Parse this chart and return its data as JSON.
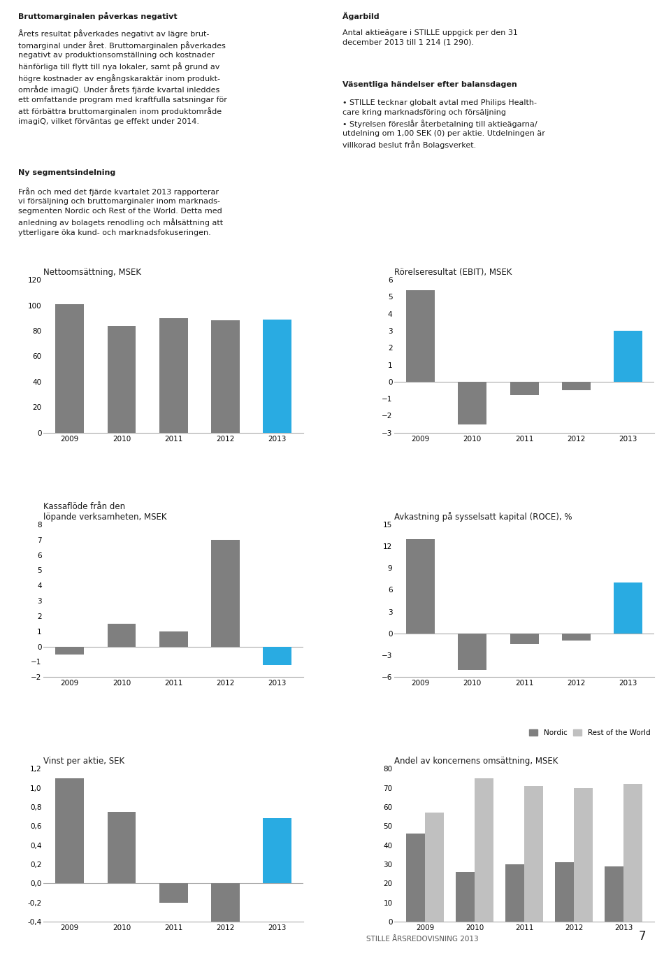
{
  "text_blocks": {
    "footer": "STILLE ÅRSREDOVISNING 2013",
    "page_number": "7"
  },
  "years": [
    "2009",
    "2010",
    "2011",
    "2012",
    "2013"
  ],
  "chart1": {
    "title": "Nettoomsättning, MSEK",
    "values": [
      101,
      84,
      90,
      88,
      89
    ],
    "ylim": [
      0,
      120
    ],
    "yticks": [
      0,
      20,
      40,
      60,
      80,
      100,
      120
    ]
  },
  "chart2": {
    "title": "Rörelseresultat (EBIT), MSEK",
    "values": [
      5.4,
      -2.5,
      -0.8,
      -0.5,
      3.0
    ],
    "ylim": [
      -3,
      6
    ],
    "yticks": [
      -3,
      -2,
      -1,
      0,
      1,
      2,
      3,
      4,
      5,
      6
    ]
  },
  "chart3": {
    "title": "Kassaflöde från den\nlöpande verksamheten, MSEK",
    "values": [
      -0.5,
      1.5,
      1.0,
      7.0,
      -1.2
    ],
    "ylim": [
      -2,
      8
    ],
    "yticks": [
      -2,
      -1,
      0,
      1,
      2,
      3,
      4,
      5,
      6,
      7,
      8
    ]
  },
  "chart4": {
    "title": "Avkastning på sysselsatt kapital (ROCE), %",
    "values": [
      13.0,
      -5.0,
      -1.5,
      -1.0,
      7.0
    ],
    "ylim": [
      -6,
      15
    ],
    "yticks": [
      -6,
      -3,
      0,
      3,
      6,
      9,
      12,
      15
    ]
  },
  "chart5": {
    "title": "Vinst per aktie, SEK",
    "values": [
      1.1,
      0.75,
      -0.2,
      -0.4,
      0.68
    ],
    "ylim": [
      -0.4,
      1.2
    ],
    "yticks": [
      -0.4,
      -0.2,
      0.0,
      0.2,
      0.4,
      0.6,
      0.8,
      1.0,
      1.2
    ]
  },
  "chart6": {
    "title": "Andel av koncernens omsättning, MSEK",
    "nordic": [
      46,
      26,
      30,
      31,
      29
    ],
    "world": [
      57,
      75,
      71,
      70,
      72
    ],
    "ylim": [
      0,
      80
    ],
    "yticks": [
      0,
      10,
      20,
      30,
      40,
      50,
      60,
      70,
      80
    ]
  },
  "colors": {
    "gray_bar": "#7f7f7f",
    "cyan_bar": "#29abe2",
    "light_gray_bar": "#c0c0c0",
    "text_dark": "#1a1a1a",
    "text_normal": "#333333",
    "axis_line": "#aaaaaa",
    "background": "#ffffff"
  }
}
